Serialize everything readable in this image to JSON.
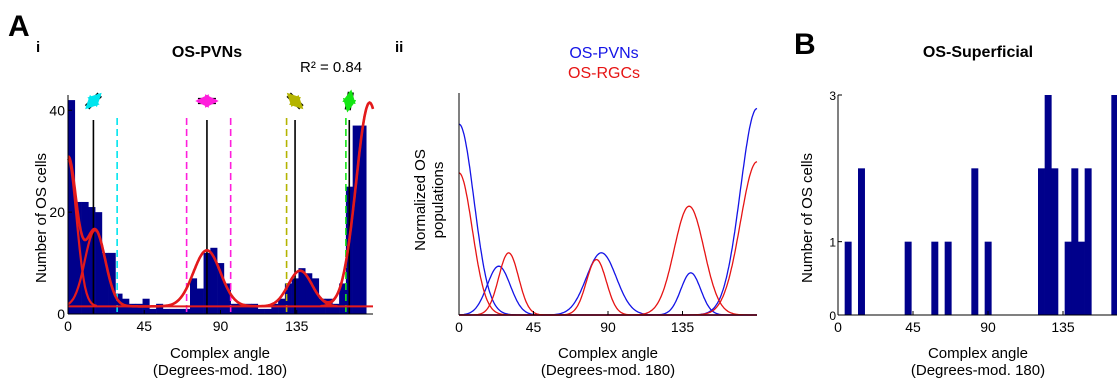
{
  "panel_labels": {
    "a": "A",
    "b": "B",
    "i": "i",
    "ii": "ii"
  },
  "colors": {
    "bar": "#00008b",
    "fit": "#e31a1c",
    "pvn": "#1414e6",
    "rgc": "#e61414",
    "cyan": "#00e5ee",
    "magenta": "#ff1edc",
    "olive": "#b4b400",
    "green": "#14e614"
  },
  "chart_data": [
    {
      "type": "bar",
      "id": "os-pvns-histogram",
      "title": "OS-PVNs",
      "annotation": "R² = 0.84",
      "xlabel": "Complex angle",
      "xlabel2": "(Degrees-mod. 180)",
      "ylabel": "Number of OS cells",
      "xlim": [
        0,
        180
      ],
      "ylim": [
        0,
        43
      ],
      "xticks": [
        0,
        45,
        90,
        135
      ],
      "yticks": [
        0,
        20,
        40
      ],
      "bin_width": 4,
      "bin_starts": [
        0,
        4,
        8,
        12,
        16,
        20,
        24,
        28,
        32,
        36,
        40,
        44,
        48,
        52,
        56,
        60,
        64,
        68,
        72,
        76,
        80,
        84,
        88,
        92,
        96,
        100,
        104,
        108,
        112,
        116,
        120,
        124,
        128,
        132,
        136,
        140,
        144,
        148,
        152,
        156,
        160,
        164,
        168,
        172,
        176
      ],
      "values": [
        42,
        22,
        22,
        21,
        20,
        12,
        12,
        4,
        3,
        2,
        2,
        3,
        1,
        2,
        1,
        1,
        1,
        1,
        7,
        5,
        12,
        13,
        10,
        6,
        2,
        2,
        2,
        2,
        1,
        1,
        2,
        3,
        6,
        7,
        9,
        8,
        7,
        3,
        3,
        2,
        6,
        25,
        37,
        37,
        0
      ],
      "fit_curve": {
        "baseline": 1.5,
        "components": [
          {
            "amplitude": 29,
            "mean": 0,
            "sd": 5
          },
          {
            "amplitude": 15,
            "mean": 16,
            "sd": 6
          },
          {
            "amplitude": 11,
            "mean": 82,
            "sd": 8
          },
          {
            "amplitude": 7,
            "mean": 137,
            "sd": 7
          },
          {
            "amplitude": 40,
            "mean": 178,
            "sd": 8
          }
        ]
      },
      "preferred_lines": [
        15,
        82,
        134,
        166
      ],
      "dashed_lines": [
        {
          "x": 29,
          "color": "cyan"
        },
        {
          "x": 70,
          "color": "magenta"
        },
        {
          "x": 96,
          "color": "magenta"
        },
        {
          "x": 129,
          "color": "olive"
        },
        {
          "x": 164,
          "color": "green"
        }
      ],
      "arrows": [
        {
          "x": 15,
          "angle_deg": 45,
          "color": "cyan"
        },
        {
          "x": 82,
          "angle_deg": 0,
          "color": "magenta"
        },
        {
          "x": 134,
          "angle_deg": -45,
          "color": "olive"
        },
        {
          "x": 166,
          "angle_deg": 80,
          "color": "green"
        }
      ]
    },
    {
      "type": "line",
      "id": "normalized-populations",
      "ylabel_lines": [
        "Normalized OS",
        "populations"
      ],
      "xlabel": "Complex angle",
      "xlabel2": "(Degrees-mod. 180)",
      "xlim": [
        0,
        180
      ],
      "ylim": [
        0,
        1
      ],
      "xticks": [
        0,
        45,
        90,
        135
      ],
      "series": [
        {
          "name": "OS-PVNs",
          "color": "pvn",
          "components": [
            {
              "amplitude": 0.86,
              "mean": 0,
              "sd": 9
            },
            {
              "amplitude": 0.22,
              "mean": 24,
              "sd": 7
            },
            {
              "amplitude": 0.28,
              "mean": 86,
              "sd": 9
            },
            {
              "amplitude": 0.19,
              "mean": 140,
              "sd": 6
            },
            {
              "amplitude": 0.93,
              "mean": 180,
              "sd": 10
            }
          ]
        },
        {
          "name": "OS-RGCs",
          "color": "rgc",
          "components": [
            {
              "amplitude": 0.64,
              "mean": 0,
              "sd": 8
            },
            {
              "amplitude": 0.28,
              "mean": 30,
              "sd": 6
            },
            {
              "amplitude": 0.25,
              "mean": 83,
              "sd": 6
            },
            {
              "amplitude": 0.49,
              "mean": 139,
              "sd": 9
            },
            {
              "amplitude": 0.69,
              "mean": 180,
              "sd": 10
            }
          ]
        }
      ]
    },
    {
      "type": "bar",
      "id": "os-superficial-histogram",
      "title": "OS-Superficial",
      "xlabel": "Complex angle",
      "xlabel2": "(Degrees-mod. 180)",
      "ylabel": "Number of OS cells",
      "xlim": [
        0,
        180
      ],
      "ylim": [
        0,
        3
      ],
      "xticks": [
        0,
        45,
        90,
        135
      ],
      "yticks": [
        0,
        1,
        3
      ],
      "bin_width": 4,
      "bin_starts": [
        4,
        12,
        40,
        56,
        64,
        80,
        88,
        120,
        124,
        128,
        136,
        140,
        144,
        148,
        164
      ],
      "values": [
        1,
        2,
        1,
        1,
        1,
        2,
        1,
        2,
        3,
        2,
        1,
        2,
        1,
        2,
        3
      ]
    }
  ]
}
